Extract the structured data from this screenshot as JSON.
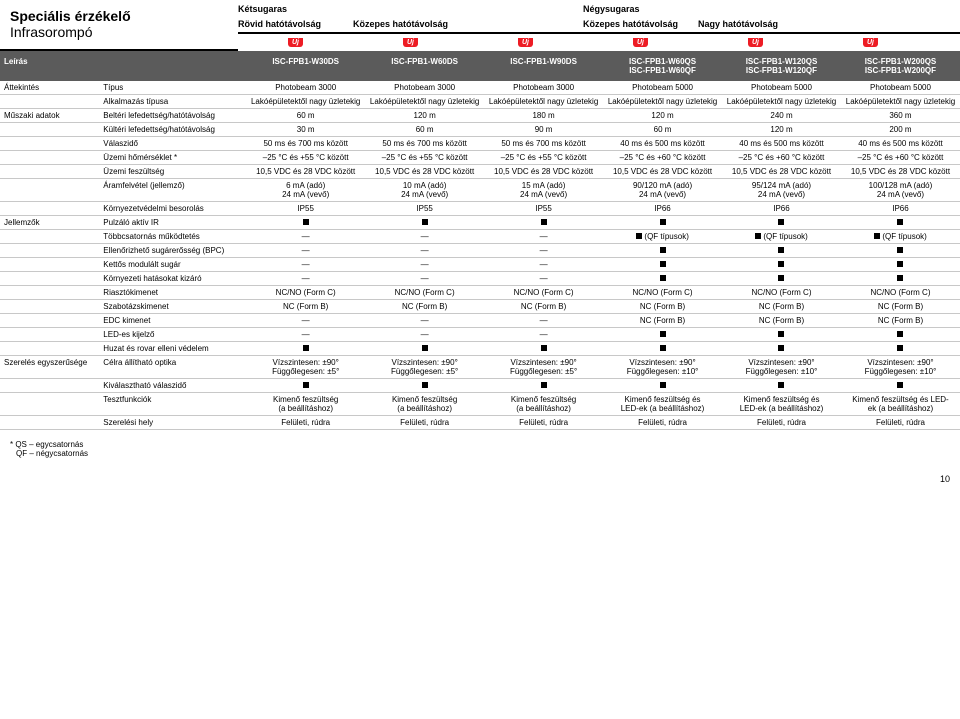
{
  "header": {
    "title_bold": "Speciális érzékelő",
    "title_light": "Infrasorompó",
    "row1": {
      "ketsugaras": "Kétsugaras",
      "negysugaras": "Négysugaras"
    },
    "row2": {
      "rovid": "Rövid hatótávolság",
      "kozepes1": "Közepes hatótávolság",
      "kozepes2": "Közepes hatótávolság",
      "nagy": "Nagy hatótávolság"
    },
    "uj": "Új"
  },
  "thead": {
    "leiras": "Leírás",
    "models": [
      {
        "l1": "ISC-FPB1-W30DS",
        "l2": ""
      },
      {
        "l1": "ISC-FPB1-W60DS",
        "l2": ""
      },
      {
        "l1": "ISC-FPB1-W90DS",
        "l2": ""
      },
      {
        "l1": "ISC-FPB1-W60QS",
        "l2": "ISC-FPB1-W60QF"
      },
      {
        "l1": "ISC-FPB1-W120QS",
        "l2": "ISC-FPB1-W120QF"
      },
      {
        "l1": "ISC-FPB1-W200QS",
        "l2": "ISC-FPB1-W200QF"
      }
    ]
  },
  "rows": [
    {
      "cat": "Áttekintés",
      "lbl": "Típus",
      "v": [
        "Photobeam 3000",
        "Photobeam 3000",
        "Photobeam 3000",
        "Photobeam 5000",
        "Photobeam 5000",
        "Photobeam 5000"
      ]
    },
    {
      "cat": "",
      "lbl": "Alkalmazás típusa",
      "v": [
        "Lakóépületektől nagy üzletekig",
        "Lakóépületektől nagy üzletekig",
        "Lakóépületektől nagy üzletekig",
        "Lakóépületektől nagy üzletekig",
        "Lakóépületektől nagy üzletekig",
        "Lakóépületektől nagy üzletekig"
      ]
    },
    {
      "cat": "Műszaki adatok",
      "lbl": "Beltéri lefedettség/hatótávolság",
      "v": [
        "60 m",
        "120 m",
        "180 m",
        "120 m",
        "240 m",
        "360 m"
      ]
    },
    {
      "cat": "",
      "lbl": "Kültéri lefedettség/hatótávolság",
      "v": [
        "30 m",
        "60 m",
        "90 m",
        "60 m",
        "120 m",
        "200 m"
      ]
    },
    {
      "cat": "",
      "lbl": "Válaszidő",
      "v": [
        "50 ms és 700 ms között",
        "50 ms és 700 ms között",
        "50 ms és 700 ms között",
        "40 ms és 500 ms között",
        "40 ms és 500 ms között",
        "40 ms és 500 ms között"
      ]
    },
    {
      "cat": "",
      "lbl": "Üzemi hőmérséklet *",
      "v": [
        "–25 °C és +55 °C között",
        "–25 °C és +55 °C között",
        "–25 °C és +55 °C között",
        "–25 °C és +60 °C között",
        "–25 °C és +60 °C között",
        "–25 °C és +60 °C között"
      ]
    },
    {
      "cat": "",
      "lbl": "Üzemi feszültség",
      "v": [
        "10,5 VDC és 28 VDC között",
        "10,5 VDC és 28 VDC között",
        "10,5 VDC és 28 VDC között",
        "10,5 VDC és 28 VDC között",
        "10,5 VDC és 28 VDC között",
        "10,5 VDC és 28 VDC között"
      ]
    },
    {
      "cat": "",
      "lbl": "Áramfelvétel (jellemző)",
      "v": [
        "6 mA (adó)\n24 mA (vevő)",
        "10 mA (adó)\n24 mA (vevő)",
        "15 mA (adó)\n24 mA (vevő)",
        "90/120 mA (adó)\n24 mA (vevő)",
        "95/124 mA (adó)\n24 mA (vevő)",
        "100/128 mA (adó)\n24 mA (vevő)"
      ]
    },
    {
      "cat": "",
      "lbl": "Környezetvédelmi besorolás",
      "v": [
        "IP55",
        "IP55",
        "IP55",
        "IP66",
        "IP66",
        "IP66"
      ]
    },
    {
      "cat": "Jellemzők",
      "lbl": "Pulzáló aktív IR",
      "v": [
        "■",
        "■",
        "■",
        "■",
        "■",
        "■"
      ]
    },
    {
      "cat": "",
      "lbl": "Többcsatornás működtetés",
      "v": [
        "—",
        "—",
        "—",
        "■ (QF típusok)",
        "■ (QF típusok)",
        "■ (QF típusok)"
      ]
    },
    {
      "cat": "",
      "lbl": "Ellenőrizhető sugárerősség (BPC)",
      "v": [
        "—",
        "—",
        "—",
        "■",
        "■",
        "■"
      ]
    },
    {
      "cat": "",
      "lbl": "Kettős modulált sugár",
      "v": [
        "—",
        "—",
        "—",
        "■",
        "■",
        "■"
      ]
    },
    {
      "cat": "",
      "lbl": "Környezeti hatásokat kizáró",
      "v": [
        "—",
        "—",
        "—",
        "■",
        "■",
        "■"
      ]
    },
    {
      "cat": "",
      "lbl": "Riasztókimenet",
      "v": [
        "NC/NO (Form C)",
        "NC/NO (Form C)",
        "NC/NO (Form C)",
        "NC/NO (Form C)",
        "NC/NO (Form C)",
        "NC/NO (Form C)"
      ]
    },
    {
      "cat": "",
      "lbl": "Szabotázskimenet",
      "v": [
        "NC (Form B)",
        "NC (Form B)",
        "NC (Form B)",
        "NC (Form B)",
        "NC (Form B)",
        "NC (Form B)"
      ]
    },
    {
      "cat": "",
      "lbl": "EDC kimenet",
      "v": [
        "—",
        "—",
        "—",
        "NC (Form B)",
        "NC (Form B)",
        "NC (Form B)"
      ]
    },
    {
      "cat": "",
      "lbl": "LED-es kijelző",
      "v": [
        "—",
        "—",
        "—",
        "■",
        "■",
        "■"
      ]
    },
    {
      "cat": "",
      "lbl": "Huzat és rovar elleni védelem",
      "v": [
        "■",
        "■",
        "■",
        "■",
        "■",
        "■"
      ]
    },
    {
      "cat": "Szerelés egyszerűsége",
      "lbl": "Célra állítható optika",
      "v": [
        "Vízszintesen: ±90°\nFüggőlegesen: ±5°",
        "Vízszintesen: ±90°\nFüggőlegesen: ±5°",
        "Vízszintesen: ±90°\nFüggőlegesen: ±5°",
        "Vízszintesen: ±90°\nFüggőlegesen: ±10°",
        "Vízszintesen: ±90°\nFüggőlegesen: ±10°",
        "Vízszintesen: ±90°\nFüggőlegesen: ±10°"
      ]
    },
    {
      "cat": "",
      "lbl": "Kiválasztható válaszidő",
      "v": [
        "■",
        "■",
        "■",
        "■",
        "■",
        "■"
      ]
    },
    {
      "cat": "",
      "lbl": "Tesztfunkciók",
      "v": [
        "Kimenő feszültség\n(a beállításhoz)",
        "Kimenő feszültség\n(a beállításhoz)",
        "Kimenő feszültség\n(a beállításhoz)",
        "Kimenő feszültség és\nLED-ek (a beállításhoz)",
        "Kimenő feszültség és\nLED-ek (a beállításhoz)",
        "Kimenő feszültség és LED-\nek (a beállításhoz)"
      ]
    },
    {
      "cat": "",
      "lbl": "Szerelési hely",
      "v": [
        "Felületi, rúdra",
        "Felületi, rúdra",
        "Felületi, rúdra",
        "Felületi, rúdra",
        "Felületi, rúdra",
        "Felületi, rúdra"
      ]
    }
  ],
  "foot": {
    "n1": "* QS – egycsatornás",
    "n2": "QF – négycsatornás",
    "page": "10"
  }
}
